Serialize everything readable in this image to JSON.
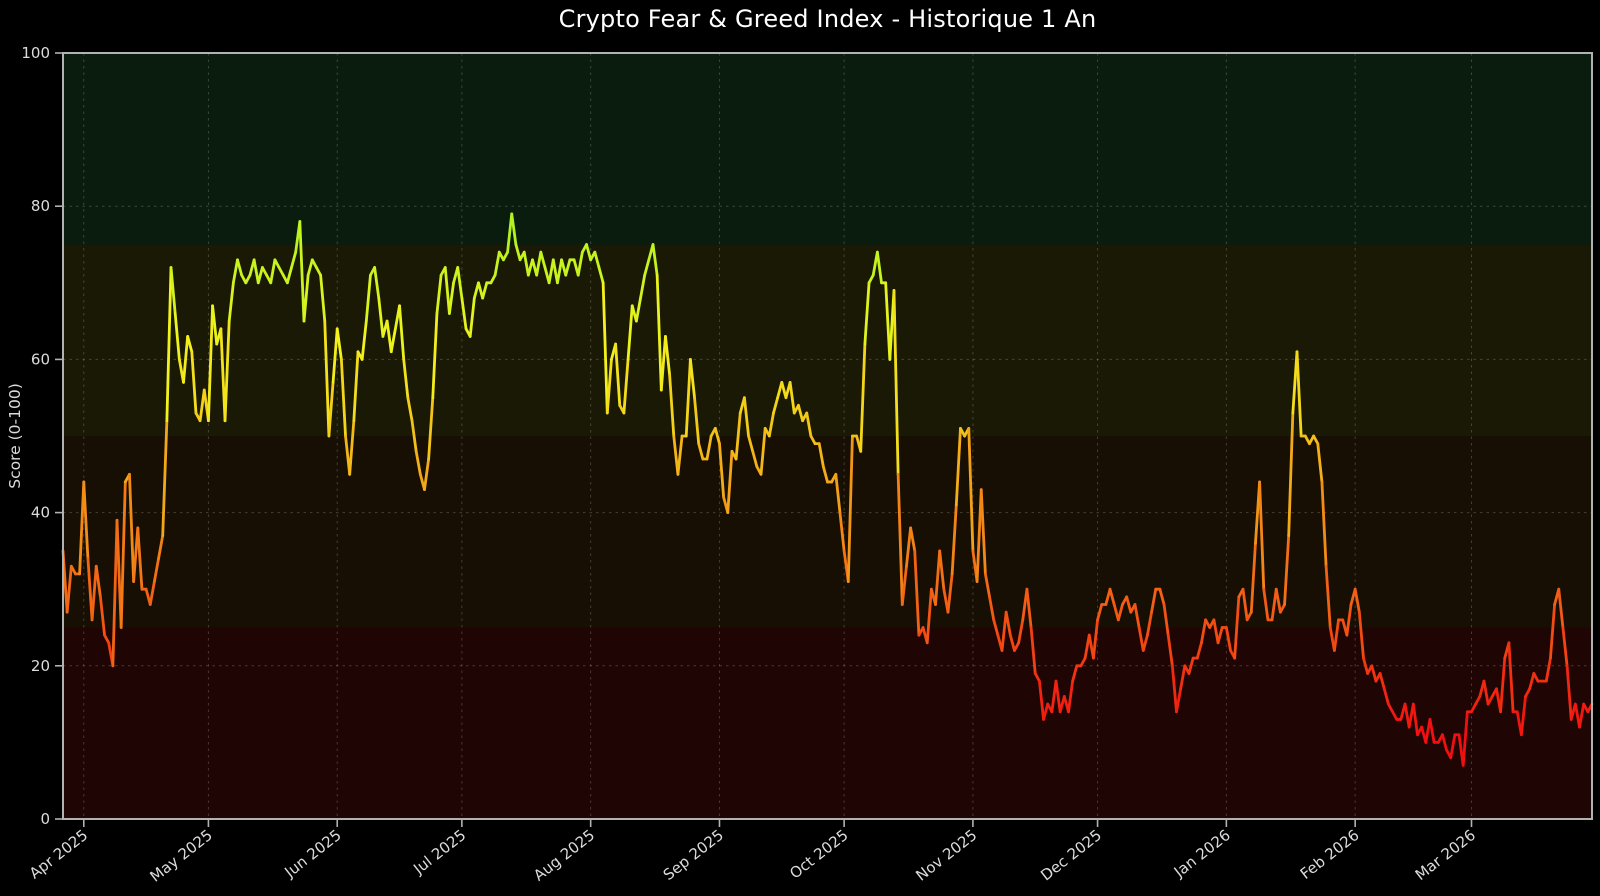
{
  "figure": {
    "background": "#000000",
    "spine_color": "#b2b2b2",
    "tick_label_color": "#dcdcdc",
    "title_color": "#ffffff",
    "grid_color": "rgba(250,250,240,0.20)"
  },
  "chart_data": {
    "type": "line",
    "title": "Crypto Fear & Greed Index - Historique 1 An",
    "xlabel": "",
    "ylabel": "Score (0-100)",
    "ylim": [
      0,
      100
    ],
    "yticks": [
      0,
      20,
      40,
      60,
      80,
      100
    ],
    "grid": "dashed",
    "legend_position": "none",
    "xticks": [
      {
        "label": "Apr 2025",
        "day": 5
      },
      {
        "label": "May 2025",
        "day": 35
      },
      {
        "label": "Jun 2025",
        "day": 66
      },
      {
        "label": "Jul 2025",
        "day": 96
      },
      {
        "label": "Aug 2025",
        "day": 127
      },
      {
        "label": "Sep 2025",
        "day": 158
      },
      {
        "label": "Oct 2025",
        "day": 188
      },
      {
        "label": "Nov 2025",
        "day": 219
      },
      {
        "label": "Dec 2025",
        "day": 249
      },
      {
        "label": "Jan 2026",
        "day": 280
      },
      {
        "label": "Feb 2026",
        "day": 311
      },
      {
        "label": "Mar 2026",
        "day": 339
      }
    ],
    "zones": [
      {
        "name": "extreme-fear",
        "from": 0,
        "to": 25,
        "fill": "rgba(255,50,38,0.12)"
      },
      {
        "name": "fear",
        "from": 25,
        "to": 50,
        "fill": "rgba(255,170,40,0.09)"
      },
      {
        "name": "greed",
        "from": 50,
        "to": 75,
        "fill": "rgba(225,225,50,0.11)"
      },
      {
        "name": "extreme-greed",
        "from": 75,
        "to": 100,
        "fill": "rgba(70,215,110,0.13)"
      }
    ],
    "line_style": {
      "width": 2.8,
      "colormap": "value-red-to-green",
      "hue_scale": 1.2,
      "hue_offset": -14,
      "hue_min": 0,
      "hue_max": 110,
      "saturation": 90,
      "lightness_base": 50,
      "lightness_gain": 0.05
    },
    "series": [
      {
        "name": "Fear & Greed Index",
        "frequency": "daily",
        "values": [
          35,
          27,
          33,
          32,
          32,
          44,
          34,
          26,
          33,
          29,
          24,
          23,
          20,
          39,
          25,
          44,
          45,
          31,
          38,
          30,
          30,
          28,
          31,
          34,
          37,
          52,
          72,
          66,
          60,
          57,
          63,
          61,
          53,
          52,
          56,
          52,
          67,
          62,
          64,
          52,
          65,
          70,
          73,
          71,
          70,
          71,
          73,
          70,
          72,
          71,
          70,
          73,
          72,
          71,
          70,
          72,
          74,
          78,
          65,
          71,
          73,
          72,
          71,
          65,
          50,
          57,
          64,
          60,
          50,
          45,
          52,
          61,
          60,
          65,
          71,
          72,
          68,
          63,
          65,
          61,
          64,
          67,
          60,
          55,
          52,
          48,
          45,
          43,
          47,
          55,
          66,
          71,
          72,
          66,
          70,
          72,
          68,
          64,
          63,
          68,
          70,
          68,
          70,
          70,
          71,
          74,
          73,
          74,
          79,
          75,
          73,
          74,
          71,
          73,
          71,
          74,
          72,
          70,
          73,
          70,
          73,
          71,
          73,
          73,
          71,
          74,
          75,
          73,
          74,
          72,
          70,
          53,
          60,
          62,
          54,
          53,
          60,
          67,
          65,
          68,
          71,
          73,
          75,
          71,
          56,
          63,
          58,
          50,
          45,
          50,
          50,
          60,
          55,
          49,
          47,
          47,
          50,
          51,
          49,
          42,
          40,
          48,
          47,
          53,
          55,
          50,
          48,
          46,
          45,
          51,
          50,
          53,
          55,
          57,
          55,
          57,
          53,
          54,
          52,
          53,
          50,
          49,
          49,
          46,
          44,
          44,
          45,
          40,
          35,
          31,
          50,
          50,
          48,
          62,
          70,
          71,
          74,
          70,
          70,
          60,
          69,
          45,
          28,
          33,
          38,
          35,
          24,
          25,
          23,
          30,
          28,
          35,
          30,
          27,
          32,
          41,
          51,
          50,
          51,
          35,
          31,
          43,
          32,
          29,
          26,
          24,
          22,
          27,
          24,
          22,
          23,
          26,
          30,
          25,
          19,
          18,
          13,
          15,
          14,
          18,
          14,
          16,
          14,
          18,
          20,
          20,
          21,
          24,
          21,
          26,
          28,
          28,
          30,
          28,
          26,
          28,
          29,
          27,
          28,
          25,
          22,
          24,
          27,
          30,
          30,
          28,
          24,
          20,
          14,
          17,
          20,
          19,
          21,
          21,
          23,
          26,
          25,
          26,
          23,
          25,
          25,
          22,
          21,
          29,
          30,
          26,
          27,
          36,
          44,
          30,
          26,
          26,
          30,
          27,
          28,
          37,
          53,
          61,
          50,
          50,
          49,
          50,
          49,
          44,
          33,
          25,
          22,
          26,
          26,
          24,
          28,
          30,
          27,
          21,
          19,
          20,
          18,
          19,
          17,
          15,
          14,
          13,
          13,
          15,
          12,
          15,
          11,
          12,
          10,
          13,
          10,
          10,
          11,
          9,
          8,
          11,
          11,
          7,
          14,
          14,
          15,
          16,
          18,
          15,
          16,
          17,
          14,
          21,
          23,
          14,
          14,
          11,
          16,
          17,
          19,
          18,
          18,
          18,
          21,
          28,
          30,
          25,
          20,
          13,
          15,
          12,
          15,
          14,
          15
        ]
      }
    ]
  }
}
